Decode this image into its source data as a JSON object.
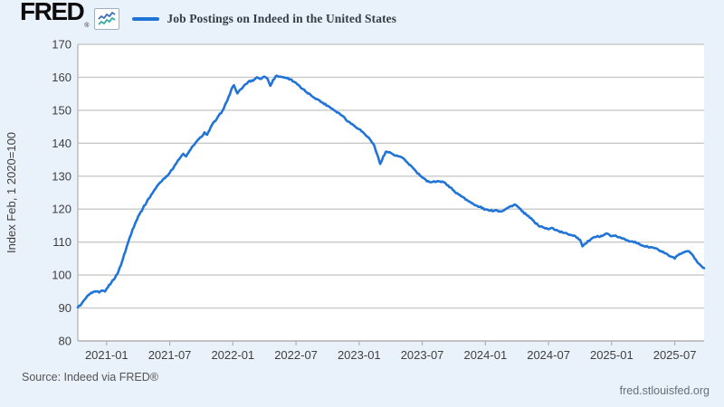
{
  "header": {
    "logo_text": "FRED",
    "logo_mark": "®",
    "legend_label": "Job Postings on Indeed in the United States"
  },
  "footer": {
    "source": "Source: Indeed via FRED®",
    "site": "fred.stlouisfed.org"
  },
  "colors": {
    "background": "#e9f1fa",
    "plot_background": "#ffffff",
    "gridline": "#c9c9c9",
    "axis_line": "#b0b0b0",
    "axis_text": "#3f3f3f",
    "line": "#2074d8",
    "title_text": "#323e48",
    "icon_zigzag_blue": "#3a6fc0",
    "icon_zigzag_teal": "#2fae9e"
  },
  "chart_data": {
    "type": "line",
    "title": "Job Postings on Indeed in the United States",
    "xlabel": "",
    "ylabel": "Index Feb, 1 2020=100",
    "ylim": [
      80,
      170
    ],
    "y_ticks": [
      80,
      90,
      100,
      110,
      120,
      130,
      140,
      150,
      160,
      170
    ],
    "x_ticks": [
      "2021-01",
      "2021-07",
      "2022-01",
      "2022-07",
      "2023-01",
      "2023-07",
      "2024-01",
      "2024-07",
      "2025-01",
      "2025-07"
    ],
    "x_range": [
      "2020-10-09",
      "2025-09-25"
    ],
    "grid": true,
    "legend_position": "top",
    "series_name": "Job Postings on Indeed in the United States",
    "points": [
      [
        "2020-10-09",
        90.2
      ],
      [
        "2020-10-20",
        91.3
      ],
      [
        "2020-11-01",
        92.9
      ],
      [
        "2020-11-10",
        94.0
      ],
      [
        "2020-11-20",
        94.6
      ],
      [
        "2020-12-01",
        95.0
      ],
      [
        "2020-12-10",
        94.7
      ],
      [
        "2020-12-18",
        95.3
      ],
      [
        "2020-12-27",
        95.0
      ],
      [
        "2021-01-01",
        95.9
      ],
      [
        "2021-01-15",
        97.8
      ],
      [
        "2021-02-01",
        100.2
      ],
      [
        "2021-02-15",
        104.0
      ],
      [
        "2021-03-01",
        109.5
      ],
      [
        "2021-03-15",
        113.8
      ],
      [
        "2021-04-01",
        117.8
      ],
      [
        "2021-04-15",
        120.3
      ],
      [
        "2021-05-01",
        123.2
      ],
      [
        "2021-05-15",
        125.4
      ],
      [
        "2021-06-01",
        127.8
      ],
      [
        "2021-06-15",
        129.3
      ],
      [
        "2021-07-01",
        131.0
      ],
      [
        "2021-07-15",
        133.2
      ],
      [
        "2021-08-01",
        135.6
      ],
      [
        "2021-08-10",
        136.8
      ],
      [
        "2021-08-18",
        136.0
      ],
      [
        "2021-09-01",
        138.2
      ],
      [
        "2021-09-15",
        140.2
      ],
      [
        "2021-10-01",
        141.9
      ],
      [
        "2021-10-10",
        143.3
      ],
      [
        "2021-10-18",
        142.6
      ],
      [
        "2021-11-01",
        145.5
      ],
      [
        "2021-11-15",
        147.3
      ],
      [
        "2021-12-01",
        149.8
      ],
      [
        "2021-12-15",
        152.8
      ],
      [
        "2021-12-27",
        156.3
      ],
      [
        "2022-01-04",
        157.6
      ],
      [
        "2022-01-14",
        155.1
      ],
      [
        "2022-02-01",
        157.2
      ],
      [
        "2022-02-15",
        158.6
      ],
      [
        "2022-03-01",
        159.2
      ],
      [
        "2022-03-10",
        160.0
      ],
      [
        "2022-03-20",
        159.5
      ],
      [
        "2022-04-01",
        160.2
      ],
      [
        "2022-04-10",
        159.6
      ],
      [
        "2022-04-18",
        157.4
      ],
      [
        "2022-04-26",
        159.2
      ],
      [
        "2022-05-06",
        160.5
      ],
      [
        "2022-05-15",
        160.2
      ],
      [
        "2022-06-01",
        159.9
      ],
      [
        "2022-06-15",
        159.4
      ],
      [
        "2022-07-01",
        158.3
      ],
      [
        "2022-07-15",
        156.8
      ],
      [
        "2022-08-01",
        155.5
      ],
      [
        "2022-08-15",
        154.4
      ],
      [
        "2022-09-01",
        153.4
      ],
      [
        "2022-09-15",
        152.4
      ],
      [
        "2022-10-01",
        151.4
      ],
      [
        "2022-10-15",
        150.4
      ],
      [
        "2022-11-01",
        149.3
      ],
      [
        "2022-11-15",
        148.2
      ],
      [
        "2022-12-01",
        146.5
      ],
      [
        "2022-12-15",
        145.5
      ],
      [
        "2023-01-01",
        144.3
      ],
      [
        "2023-01-15",
        143.0
      ],
      [
        "2023-02-01",
        141.3
      ],
      [
        "2023-02-12",
        139.8
      ],
      [
        "2023-02-22",
        136.8
      ],
      [
        "2023-03-01",
        133.7
      ],
      [
        "2023-03-10",
        136.0
      ],
      [
        "2023-03-17",
        137.4
      ],
      [
        "2023-04-01",
        137.1
      ],
      [
        "2023-04-15",
        136.2
      ],
      [
        "2023-05-01",
        135.8
      ],
      [
        "2023-05-15",
        134.5
      ],
      [
        "2023-06-01",
        132.9
      ],
      [
        "2023-06-15",
        131.2
      ],
      [
        "2023-07-01",
        129.6
      ],
      [
        "2023-07-15",
        128.4
      ],
      [
        "2023-08-01",
        128.3
      ],
      [
        "2023-08-15",
        128.5
      ],
      [
        "2023-09-01",
        128.2
      ],
      [
        "2023-09-15",
        127.2
      ],
      [
        "2023-10-01",
        125.6
      ],
      [
        "2023-10-15",
        124.4
      ],
      [
        "2023-11-01",
        123.4
      ],
      [
        "2023-11-15",
        122.3
      ],
      [
        "2023-12-01",
        121.2
      ],
      [
        "2023-12-15",
        120.7
      ],
      [
        "2024-01-01",
        119.9
      ],
      [
        "2024-01-15",
        119.5
      ],
      [
        "2024-02-01",
        119.7
      ],
      [
        "2024-02-15",
        119.3
      ],
      [
        "2024-03-01",
        120.2
      ],
      [
        "2024-03-25",
        121.4
      ],
      [
        "2024-04-05",
        120.6
      ],
      [
        "2024-04-15",
        119.4
      ],
      [
        "2024-05-01",
        118.0
      ],
      [
        "2024-05-15",
        116.8
      ],
      [
        "2024-06-01",
        115.1
      ],
      [
        "2024-06-15",
        114.5
      ],
      [
        "2024-07-01",
        113.9
      ],
      [
        "2024-07-10",
        114.3
      ],
      [
        "2024-08-01",
        113.3
      ],
      [
        "2024-08-15",
        112.8
      ],
      [
        "2024-09-01",
        112.3
      ],
      [
        "2024-09-15",
        112.0
      ],
      [
        "2024-10-01",
        110.7
      ],
      [
        "2024-10-08",
        108.7
      ],
      [
        "2024-10-16",
        109.5
      ],
      [
        "2024-11-01",
        110.8
      ],
      [
        "2024-11-15",
        111.5
      ],
      [
        "2024-12-01",
        111.9
      ],
      [
        "2024-12-18",
        112.6
      ],
      [
        "2025-01-01",
        111.8
      ],
      [
        "2025-01-15",
        111.8
      ],
      [
        "2025-02-01",
        111.1
      ],
      [
        "2025-02-15",
        110.6
      ],
      [
        "2025-03-01",
        110.2
      ],
      [
        "2025-03-15",
        109.6
      ],
      [
        "2025-04-01",
        108.9
      ],
      [
        "2025-04-15",
        108.5
      ],
      [
        "2025-05-01",
        108.3
      ],
      [
        "2025-05-15",
        107.6
      ],
      [
        "2025-06-01",
        106.7
      ],
      [
        "2025-06-15",
        105.8
      ],
      [
        "2025-07-01",
        105.0
      ],
      [
        "2025-07-15",
        106.4
      ],
      [
        "2025-08-01",
        107.1
      ],
      [
        "2025-08-12",
        107.2
      ],
      [
        "2025-08-22",
        106.1
      ],
      [
        "2025-09-01",
        104.7
      ],
      [
        "2025-09-10",
        103.4
      ],
      [
        "2025-09-18",
        102.6
      ],
      [
        "2025-09-25",
        102.1
      ]
    ]
  }
}
